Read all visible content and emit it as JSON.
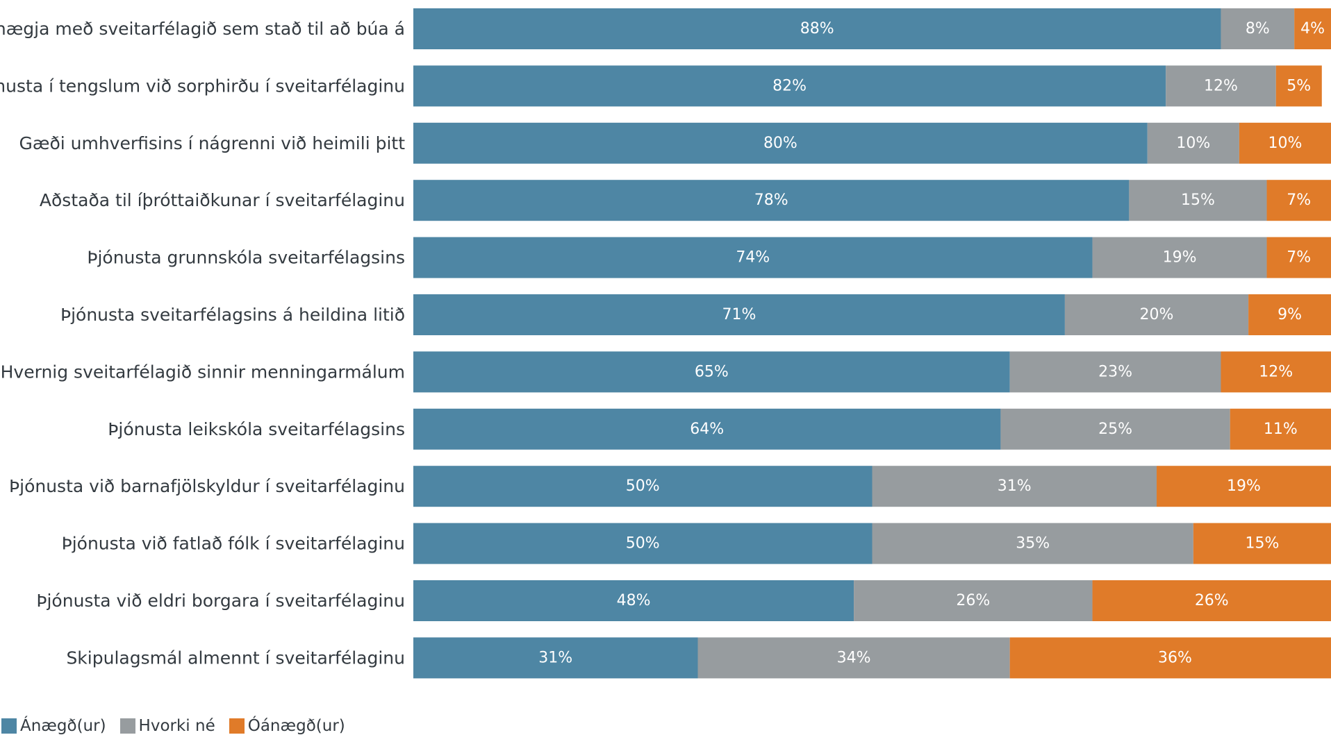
{
  "chart_data": {
    "type": "bar",
    "orientation": "horizontal",
    "stacked": true,
    "title": "",
    "xlabel": "",
    "ylabel": "",
    "xlim": [
      0,
      100
    ],
    "grid": false,
    "legend_position": "bottom-left",
    "categories": [
      "Heildaránægja með sveitarfélagið sem stað til að búa á",
      "Þjónusta í tengslum við sorphirðu í sveitarfélaginu",
      "Gæði umhverfisins í nágrenni við heimili þitt",
      "Aðstaða til íþróttaiðkunar í sveitarfélaginu",
      "Þjónusta grunnskóla sveitarfélagsins",
      "Þjónusta sveitarfélagsins á heildina litið",
      "Hvernig sveitarfélagið sinnir menningarmálum",
      "Þjónusta leikskóla sveitarfélagsins",
      "Þjónusta við barnafjölskyldur í sveitarfélaginu",
      "Þjónusta við fatlað fólk í sveitarfélaginu",
      "Þjónusta við eldri borgara í sveitarfélaginu",
      "Skipulagsmál almennt í sveitarfélaginu"
    ],
    "series": [
      {
        "name": "Ánægð(ur)",
        "color": "#4e86a4",
        "values": [
          88,
          82,
          80,
          78,
          74,
          71,
          65,
          64,
          50,
          50,
          48,
          31
        ]
      },
      {
        "name": "Hvorki né",
        "color": "#979c9f",
        "values": [
          8,
          12,
          10,
          15,
          19,
          20,
          23,
          25,
          31,
          35,
          26,
          34
        ]
      },
      {
        "name": "Óánægð(ur)",
        "color": "#e07b29",
        "values": [
          4,
          5,
          10,
          7,
          7,
          9,
          12,
          11,
          19,
          15,
          26,
          36
        ]
      }
    ],
    "value_label_suffix": "%"
  }
}
